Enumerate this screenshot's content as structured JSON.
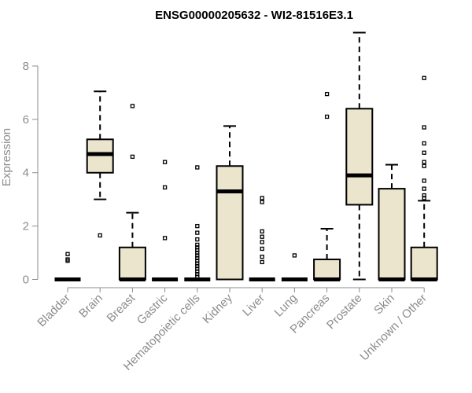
{
  "chart_data": {
    "type": "boxplot",
    "title": "ENSG00000205632 - WI2-81516E3.1",
    "xlabel": "",
    "ylabel": "Expression",
    "ylim": [
      -0.3,
      9.4
    ],
    "yticks": [
      0,
      2,
      4,
      6,
      8
    ],
    "grid": false,
    "box_fill": "#ece5cd",
    "categories": [
      "Bladder",
      "Brain",
      "Breast",
      "Gastric",
      "Hematopoietic cells",
      "Kidney",
      "Liver",
      "Lung",
      "Pancreas",
      "Prostate",
      "Skin",
      "Unknown / Other"
    ],
    "boxes": [
      {
        "name": "Bladder",
        "q1": 0,
        "median": 0,
        "q3": 0,
        "whisker_low": 0,
        "whisker_high": 0,
        "outliers": [
          0.7,
          0.75,
          0.95
        ]
      },
      {
        "name": "Brain",
        "q1": 4.0,
        "median": 4.7,
        "q3": 5.25,
        "whisker_low": 3.0,
        "whisker_high": 7.05,
        "outliers": [
          1.65
        ]
      },
      {
        "name": "Breast",
        "q1": 0,
        "median": 0,
        "q3": 1.2,
        "whisker_low": 0,
        "whisker_high": 2.5,
        "outliers": [
          4.6,
          6.5
        ]
      },
      {
        "name": "Gastric",
        "q1": 0,
        "median": 0,
        "q3": 0,
        "whisker_low": 0,
        "whisker_high": 0,
        "outliers": [
          1.55,
          3.45,
          4.4
        ]
      },
      {
        "name": "Hematopoietic cells",
        "q1": 0,
        "median": 0,
        "q3": 0,
        "whisker_low": 0,
        "whisker_high": 0,
        "outliers": [
          0.1,
          0.2,
          0.3,
          0.4,
          0.5,
          0.6,
          0.7,
          0.8,
          0.9,
          1.0,
          1.1,
          1.2,
          1.3,
          1.5,
          1.75,
          2.0,
          4.2
        ]
      },
      {
        "name": "Kidney",
        "q1": 0,
        "median": 3.3,
        "q3": 4.25,
        "whisker_low": 0,
        "whisker_high": 5.75,
        "outliers": []
      },
      {
        "name": "Liver",
        "q1": 0,
        "median": 0,
        "q3": 0,
        "whisker_low": 0,
        "whisker_high": 0,
        "outliers": [
          0.65,
          0.85,
          1.15,
          1.4,
          1.6,
          1.8,
          2.9,
          3.05
        ]
      },
      {
        "name": "Lung",
        "q1": 0,
        "median": 0,
        "q3": 0,
        "whisker_low": 0,
        "whisker_high": 0,
        "outliers": [
          0.9
        ]
      },
      {
        "name": "Pancreas",
        "q1": 0,
        "median": 0,
        "q3": 0.75,
        "whisker_low": 0,
        "whisker_high": 1.9,
        "outliers": [
          6.1,
          6.95
        ]
      },
      {
        "name": "Prostate",
        "q1": 2.8,
        "median": 3.9,
        "q3": 6.4,
        "whisker_low": 0,
        "whisker_high": 9.25,
        "outliers": []
      },
      {
        "name": "Skin",
        "q1": 0,
        "median": 0,
        "q3": 3.4,
        "whisker_low": 0,
        "whisker_high": 4.3,
        "outliers": []
      },
      {
        "name": "Unknown / Other",
        "q1": 0,
        "median": 0,
        "q3": 1.2,
        "whisker_low": 0,
        "whisker_high": 2.95,
        "outliers": [
          3.05,
          3.15,
          3.4,
          3.7,
          4.25,
          4.4,
          4.75,
          5.1,
          5.7,
          7.55
        ]
      }
    ]
  }
}
